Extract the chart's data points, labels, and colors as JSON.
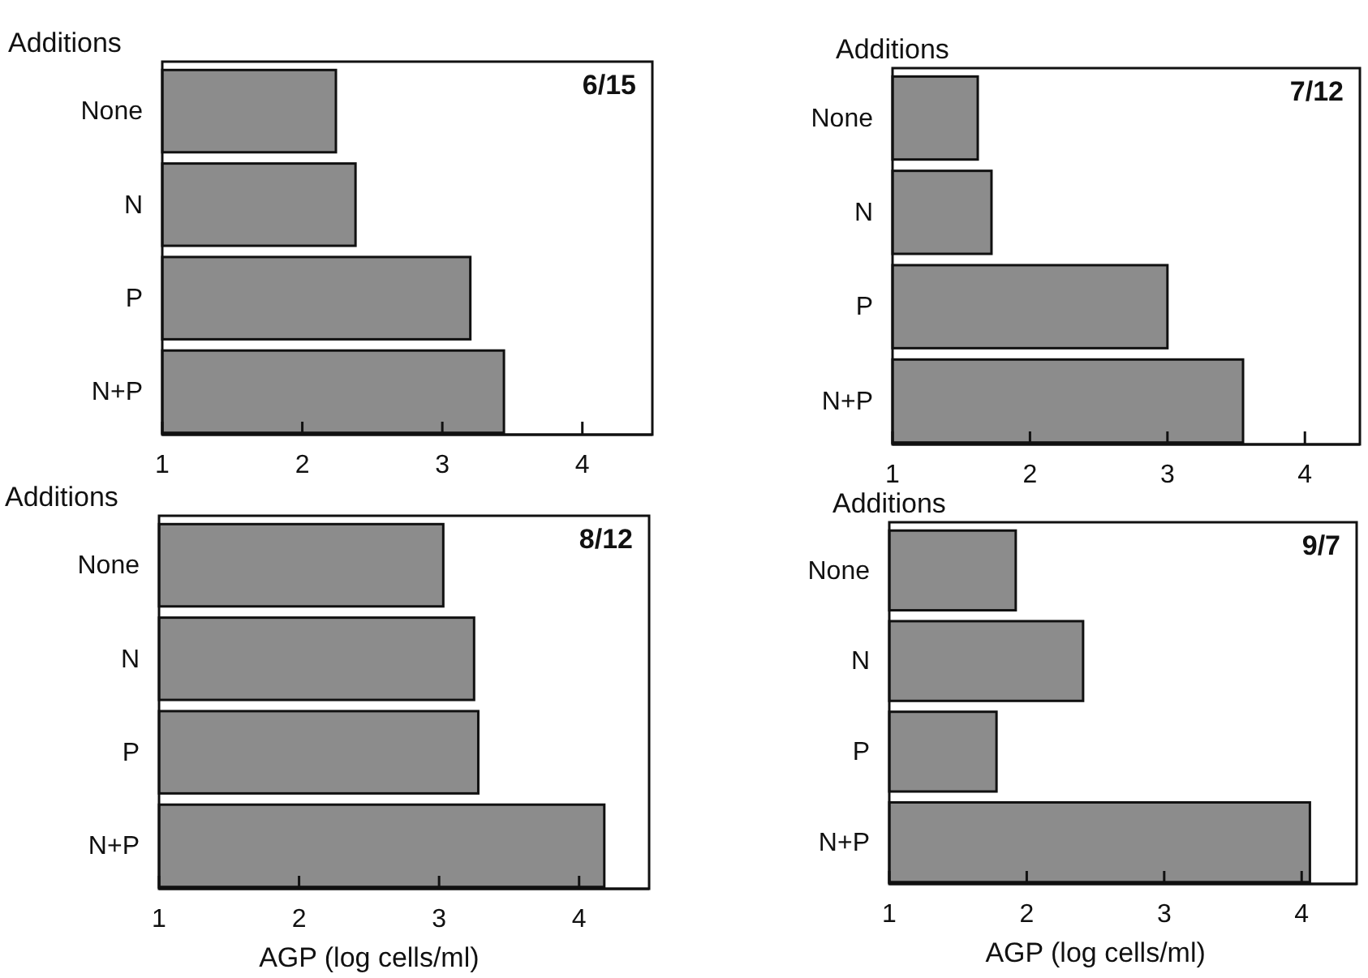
{
  "chart_data": [
    {
      "type": "bar",
      "orientation": "horizontal",
      "title": "6/15",
      "ylabel": "Additions",
      "categories": [
        "None",
        "N",
        "P",
        "N+P"
      ],
      "values": [
        2.24,
        2.38,
        3.2,
        3.44
      ],
      "color": "#8c8c8c",
      "xlim": [
        1,
        4.5
      ],
      "xticks": [
        1,
        2,
        3,
        4
      ],
      "grid": false
    },
    {
      "type": "bar",
      "orientation": "horizontal",
      "title": "7/12",
      "ylabel": "Additions",
      "categories": [
        "None",
        "N",
        "P",
        "N+P"
      ],
      "values": [
        1.62,
        1.72,
        3.0,
        3.55
      ],
      "color": "#8c8c8c",
      "xlim": [
        1,
        4.4
      ],
      "xticks": [
        1,
        2,
        3,
        4
      ],
      "grid": false
    },
    {
      "type": "bar",
      "orientation": "horizontal",
      "title": "8/12",
      "ylabel": "Additions",
      "xlabel": "AGP (log cells/ml)",
      "categories": [
        "None",
        "N",
        "P",
        "N+P"
      ],
      "values": [
        3.03,
        3.25,
        3.28,
        4.18
      ],
      "color": "#8c8c8c",
      "xlim": [
        1,
        4.5
      ],
      "xticks": [
        1,
        2,
        3,
        4
      ],
      "grid": false
    },
    {
      "type": "bar",
      "orientation": "horizontal",
      "title": "9/7",
      "ylabel": "Additions",
      "xlabel": "AGP (log cells/ml)",
      "categories": [
        "None",
        "N",
        "P",
        "N+P"
      ],
      "values": [
        1.92,
        2.41,
        1.78,
        4.06
      ],
      "color": "#8c8c8c",
      "xlim": [
        1,
        4.4
      ],
      "xticks": [
        1,
        2,
        3,
        4
      ],
      "grid": false
    }
  ]
}
